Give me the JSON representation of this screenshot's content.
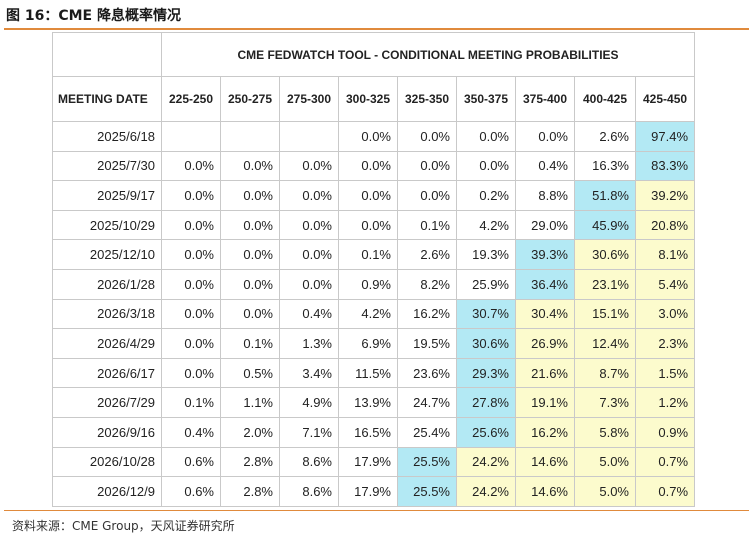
{
  "figure_title": "图 16：CME 降息概率情况",
  "source": "资料来源：CME Group，天风证券研究所",
  "table": {
    "tool_title": "CME FEDWATCH TOOL - CONDITIONAL MEETING PROBABILITIES",
    "header": [
      "MEETING DATE",
      "225-250",
      "250-275",
      "275-300",
      "300-325",
      "325-350",
      "350-375",
      "375-400",
      "400-425",
      "425-450"
    ],
    "rows": [
      {
        "date": "2025/6/18",
        "cells": [
          "",
          "",
          "",
          "0.0%",
          "0.0%",
          "0.0%",
          "0.0%",
          "2.6%",
          "97.4%"
        ],
        "hl": [
          0,
          0,
          0,
          0,
          0,
          0,
          0,
          0,
          2
        ]
      },
      {
        "date": "2025/7/30",
        "cells": [
          "0.0%",
          "0.0%",
          "0.0%",
          "0.0%",
          "0.0%",
          "0.0%",
          "0.4%",
          "16.3%",
          "83.3%"
        ],
        "hl": [
          0,
          0,
          0,
          0,
          0,
          0,
          0,
          0,
          2
        ]
      },
      {
        "date": "2025/9/17",
        "cells": [
          "0.0%",
          "0.0%",
          "0.0%",
          "0.0%",
          "0.0%",
          "0.2%",
          "8.8%",
          "51.8%",
          "39.2%"
        ],
        "hl": [
          0,
          0,
          0,
          0,
          0,
          0,
          0,
          2,
          1
        ]
      },
      {
        "date": "2025/10/29",
        "cells": [
          "0.0%",
          "0.0%",
          "0.0%",
          "0.0%",
          "0.1%",
          "4.2%",
          "29.0%",
          "45.9%",
          "20.8%"
        ],
        "hl": [
          0,
          0,
          0,
          0,
          0,
          0,
          0,
          2,
          1
        ]
      },
      {
        "date": "2025/12/10",
        "cells": [
          "0.0%",
          "0.0%",
          "0.0%",
          "0.1%",
          "2.6%",
          "19.3%",
          "39.3%",
          "30.6%",
          "8.1%"
        ],
        "hl": [
          0,
          0,
          0,
          0,
          0,
          0,
          2,
          1,
          1
        ]
      },
      {
        "date": "2026/1/28",
        "cells": [
          "0.0%",
          "0.0%",
          "0.0%",
          "0.9%",
          "8.2%",
          "25.9%",
          "36.4%",
          "23.1%",
          "5.4%"
        ],
        "hl": [
          0,
          0,
          0,
          0,
          0,
          0,
          2,
          1,
          1
        ]
      },
      {
        "date": "2026/3/18",
        "cells": [
          "0.0%",
          "0.0%",
          "0.4%",
          "4.2%",
          "16.2%",
          "30.7%",
          "30.4%",
          "15.1%",
          "3.0%"
        ],
        "hl": [
          0,
          0,
          0,
          0,
          0,
          2,
          1,
          1,
          1
        ]
      },
      {
        "date": "2026/4/29",
        "cells": [
          "0.0%",
          "0.1%",
          "1.3%",
          "6.9%",
          "19.5%",
          "30.6%",
          "26.9%",
          "12.4%",
          "2.3%"
        ],
        "hl": [
          0,
          0,
          0,
          0,
          0,
          2,
          1,
          1,
          1
        ]
      },
      {
        "date": "2026/6/17",
        "cells": [
          "0.0%",
          "0.5%",
          "3.4%",
          "11.5%",
          "23.6%",
          "29.3%",
          "21.6%",
          "8.7%",
          "1.5%"
        ],
        "hl": [
          0,
          0,
          0,
          0,
          0,
          2,
          1,
          1,
          1
        ]
      },
      {
        "date": "2026/7/29",
        "cells": [
          "0.1%",
          "1.1%",
          "4.9%",
          "13.9%",
          "24.7%",
          "27.8%",
          "19.1%",
          "7.3%",
          "1.2%"
        ],
        "hl": [
          0,
          0,
          0,
          0,
          0,
          2,
          1,
          1,
          1
        ]
      },
      {
        "date": "2026/9/16",
        "cells": [
          "0.4%",
          "2.0%",
          "7.1%",
          "16.5%",
          "25.4%",
          "25.6%",
          "16.2%",
          "5.8%",
          "0.9%"
        ],
        "hl": [
          0,
          0,
          0,
          0,
          0,
          2,
          1,
          1,
          1
        ]
      },
      {
        "date": "2026/10/28",
        "cells": [
          "0.6%",
          "2.8%",
          "8.6%",
          "17.9%",
          "25.5%",
          "24.2%",
          "14.6%",
          "5.0%",
          "0.7%"
        ],
        "hl": [
          0,
          0,
          0,
          0,
          2,
          1,
          1,
          1,
          1
        ]
      },
      {
        "date": "2026/12/9",
        "cells": [
          "0.6%",
          "2.8%",
          "8.6%",
          "17.9%",
          "25.5%",
          "24.2%",
          "14.6%",
          "5.0%",
          "0.7%"
        ],
        "hl": [
          0,
          0,
          0,
          0,
          2,
          1,
          1,
          1,
          1
        ]
      }
    ],
    "colors": {
      "highlight": "#b3e9f4",
      "secondary": "#fcfbcd"
    }
  }
}
